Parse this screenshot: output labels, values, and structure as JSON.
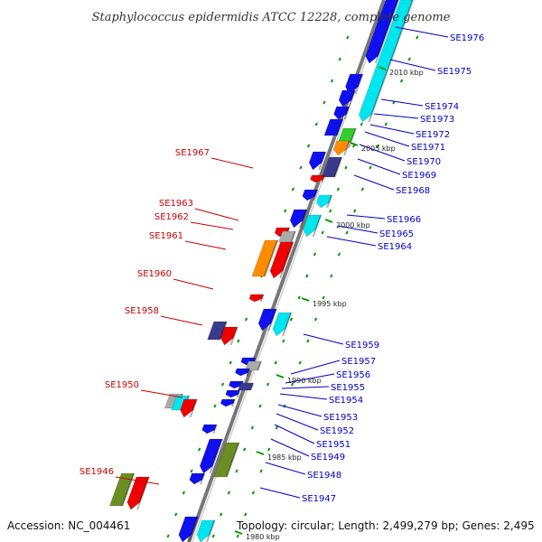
{
  "title": "Staphylococcus epidermidis ATCC 12228, complete genome",
  "footer": {
    "accession": "Accession: NC_004461",
    "topology": "Topology: circular; Length: 2,499,279 bp; Genes: 2,495"
  },
  "kbp_marks": [
    "2010 kbp",
    "2005 kbp",
    "2000 kbp",
    "1995 kbp",
    "1990 kbp",
    "1985 kbp",
    "1980 kbp"
  ],
  "genes_plus": [
    "SE1976",
    "SE1975",
    "SE1974",
    "SE1973",
    "SE1972",
    "SE1971",
    "SE1970",
    "SE1969",
    "SE1968",
    "SE1966",
    "SE1965",
    "SE1964",
    "SE1959",
    "SE1957",
    "SE1956",
    "SE1955",
    "SE1954",
    "SE1953",
    "SE1952",
    "SE1951",
    "SE1949",
    "SE1948",
    "SE1947"
  ],
  "genes_minus": [
    "SE1967",
    "SE1963",
    "SE1962",
    "SE1961",
    "SE1960",
    "SE1958",
    "SE1950",
    "SE1946"
  ],
  "colors": {
    "plus_label": "#0000cc",
    "minus_label": "#cc0000",
    "backbone": "#888888",
    "tick_green": "#009900",
    "gene_blue": "#1010ee",
    "gene_cyan": "#00e5ee",
    "gene_navy": "#3a3a8c",
    "gene_olive": "#6b8e23",
    "gene_orange": "#ff8c00",
    "gene_green": "#33cc33",
    "gene_red": "#ee0000",
    "gene_gray": "#aaaaaa"
  }
}
